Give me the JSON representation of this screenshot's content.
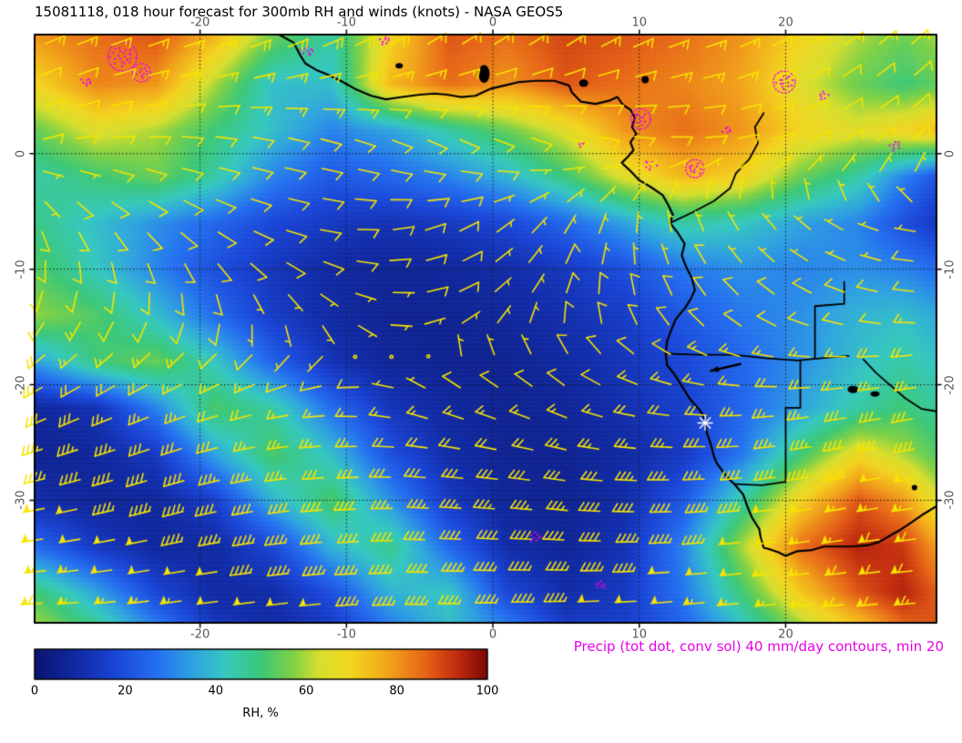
{
  "title": "15081118, 018 hour forecast for 300mb RH and winds (knots) - NASA GEOS5",
  "precip_note": "Precip (tot dot, conv sol) 40 mm/day contours, min 20",
  "colorbar": {
    "label": "RH, %",
    "ticks": [
      0,
      20,
      40,
      60,
      80,
      100
    ]
  },
  "axes": {
    "lon_ticks": [
      -20,
      -10,
      0,
      10,
      20
    ],
    "lat_ticks": [
      0,
      -10,
      -20,
      -30
    ],
    "lon_range": [
      -31.3,
      30.3
    ],
    "lat_range": [
      -40.6,
      10.3
    ]
  },
  "colors": {
    "barb": "#f7e400",
    "precip": "#ee00ee",
    "coast": "#000000",
    "grid": "#1a1a1a",
    "marker": "#ffffff"
  },
  "chart_data": {
    "type": "heatmap",
    "title": "300mb relative humidity (%) with wind barbs (knots), 18h forecast, NASA GEOS5",
    "units": "%",
    "lon_grid": [
      -31,
      -27,
      -23,
      -19,
      -15,
      -11,
      -7,
      -3,
      1,
      5,
      9,
      13,
      17,
      21,
      25,
      28,
      31
    ],
    "lat_grid": [
      10,
      6,
      2,
      -2,
      -6,
      -10,
      -14,
      -18,
      -22,
      -26,
      -30,
      -34,
      -38,
      -41
    ],
    "rh_values": [
      [
        80,
        85,
        88,
        75,
        55,
        45,
        70,
        88,
        85,
        90,
        88,
        85,
        80,
        70,
        60,
        55,
        60
      ],
      [
        70,
        82,
        80,
        60,
        40,
        40,
        75,
        85,
        80,
        88,
        85,
        82,
        78,
        65,
        55,
        50,
        55
      ],
      [
        55,
        65,
        60,
        50,
        40,
        30,
        35,
        45,
        55,
        65,
        80,
        85,
        80,
        70,
        65,
        70,
        75
      ],
      [
        45,
        50,
        55,
        45,
        30,
        22,
        25,
        30,
        38,
        50,
        65,
        75,
        70,
        55,
        45,
        30,
        18
      ],
      [
        48,
        40,
        32,
        25,
        18,
        14,
        12,
        14,
        18,
        25,
        35,
        45,
        42,
        35,
        30,
        20,
        12
      ],
      [
        52,
        42,
        30,
        20,
        13,
        9,
        7,
        8,
        10,
        14,
        20,
        28,
        32,
        30,
        32,
        30,
        25
      ],
      [
        58,
        52,
        40,
        26,
        15,
        9,
        6,
        6,
        8,
        11,
        15,
        22,
        28,
        32,
        38,
        40,
        35
      ],
      [
        35,
        50,
        55,
        42,
        24,
        12,
        7,
        6,
        6,
        9,
        13,
        18,
        25,
        32,
        40,
        45,
        40
      ],
      [
        8,
        12,
        30,
        52,
        45,
        26,
        13,
        8,
        6,
        7,
        11,
        16,
        25,
        35,
        45,
        50,
        45
      ],
      [
        6,
        8,
        14,
        35,
        52,
        40,
        20,
        10,
        6,
        6,
        9,
        14,
        28,
        50,
        68,
        60,
        50
      ],
      [
        10,
        7,
        8,
        16,
        38,
        52,
        32,
        14,
        7,
        6,
        10,
        22,
        45,
        70,
        88,
        80,
        60
      ],
      [
        25,
        14,
        8,
        9,
        18,
        38,
        48,
        25,
        10,
        7,
        12,
        30,
        60,
        85,
        95,
        92,
        75
      ],
      [
        50,
        35,
        18,
        9,
        10,
        20,
        38,
        42,
        18,
        10,
        14,
        28,
        50,
        72,
        88,
        95,
        85
      ],
      [
        60,
        48,
        30,
        14,
        9,
        14,
        28,
        40,
        30,
        15,
        16,
        24,
        40,
        58,
        72,
        85,
        90
      ]
    ],
    "colormap": [
      [
        0,
        "#0b1470"
      ],
      [
        0.1,
        "#112ca8"
      ],
      [
        0.18,
        "#1a46d8"
      ],
      [
        0.27,
        "#2470f0"
      ],
      [
        0.35,
        "#2fa3e0"
      ],
      [
        0.42,
        "#35c8c0"
      ],
      [
        0.5,
        "#3cc878"
      ],
      [
        0.57,
        "#7ed146"
      ],
      [
        0.63,
        "#d8df2e"
      ],
      [
        0.7,
        "#f3d51e"
      ],
      [
        0.78,
        "#f2a51a"
      ],
      [
        0.86,
        "#e76617"
      ],
      [
        0.93,
        "#c42e0e"
      ],
      [
        1,
        "#7e0707"
      ]
    ],
    "wind": {
      "lon_grid": [
        -31,
        -22,
        -13,
        -4,
        5,
        14,
        23,
        31
      ],
      "lat_grid": [
        10,
        2,
        -6,
        -14,
        -22,
        -30,
        -41
      ],
      "u": [
        [
          -12,
          -15,
          -18,
          -15,
          -12,
          -15,
          -12,
          -10
        ],
        [
          -8,
          -10,
          -12,
          -10,
          -8,
          -10,
          -8,
          -6
        ],
        [
          -4,
          -8,
          -10,
          -8,
          -4,
          2,
          4,
          5
        ],
        [
          6,
          2,
          -4,
          -8,
          -2,
          6,
          10,
          12
        ],
        [
          25,
          20,
          14,
          10,
          12,
          18,
          25,
          30
        ],
        [
          48,
          42,
          38,
          35,
          36,
          42,
          52,
          58
        ],
        [
          60,
          55,
          50,
          48,
          50,
          55,
          62,
          65
        ]
      ],
      "v": [
        [
          -5,
          -5,
          -8,
          -10,
          -8,
          -5,
          -8,
          -10
        ],
        [
          -3,
          0,
          3,
          5,
          3,
          0,
          -4,
          -6
        ],
        [
          8,
          6,
          2,
          -3,
          -6,
          -6,
          -3,
          0
        ],
        [
          12,
          10,
          6,
          -2,
          -8,
          -8,
          -4,
          0
        ],
        [
          12,
          8,
          2,
          -4,
          -6,
          -2,
          4,
          6
        ],
        [
          10,
          12,
          4,
          -2,
          -4,
          2,
          10,
          8
        ],
        [
          2,
          6,
          6,
          0,
          2,
          6,
          6,
          4
        ]
      ]
    },
    "coastlines": [
      [
        [
          -14.6,
          10.3
        ],
        [
          -13.6,
          9.6
        ],
        [
          -13.2,
          8.6
        ],
        [
          -12.8,
          7.8
        ],
        [
          -12.0,
          7.2
        ],
        [
          -11.2,
          6.8
        ],
        [
          -10.4,
          6.3
        ],
        [
          -9.4,
          5.6
        ],
        [
          -8.3,
          5.0
        ],
        [
          -7.3,
          4.7
        ],
        [
          -6.2,
          4.9
        ],
        [
          -5.0,
          5.1
        ],
        [
          -4.0,
          5.2
        ],
        [
          -3.1,
          5.1
        ],
        [
          -2.2,
          4.9
        ],
        [
          -1.2,
          5.0
        ],
        [
          -0.2,
          5.6
        ],
        [
          0.8,
          5.9
        ],
        [
          1.8,
          6.2
        ],
        [
          2.9,
          6.3
        ],
        [
          4.2,
          6.3
        ],
        [
          5.2,
          5.9
        ],
        [
          5.4,
          5.3
        ],
        [
          6.0,
          4.5
        ],
        [
          7.0,
          4.3
        ],
        [
          8.0,
          4.6
        ],
        [
          8.5,
          4.9
        ],
        [
          8.9,
          4.2
        ],
        [
          9.4,
          3.8
        ],
        [
          9.7,
          3.1
        ],
        [
          9.5,
          2.3
        ],
        [
          9.8,
          1.7
        ],
        [
          9.4,
          1.0
        ],
        [
          9.6,
          0.3
        ],
        [
          9.2,
          -0.3
        ],
        [
          8.8,
          -0.8
        ],
        [
          9.4,
          -1.5
        ],
        [
          10.0,
          -2.3
        ],
        [
          10.8,
          -2.9
        ],
        [
          11.6,
          -3.6
        ],
        [
          12.0,
          -4.5
        ],
        [
          12.3,
          -5.3
        ],
        [
          12.1,
          -6.0
        ],
        [
          12.6,
          -6.8
        ],
        [
          13.1,
          -7.8
        ],
        [
          12.9,
          -8.8
        ],
        [
          13.2,
          -9.8
        ],
        [
          13.6,
          -10.8
        ],
        [
          13.8,
          -11.8
        ],
        [
          13.5,
          -12.6
        ],
        [
          13.1,
          -13.4
        ],
        [
          12.5,
          -14.3
        ],
        [
          12.2,
          -15.2
        ],
        [
          11.9,
          -16.2
        ],
        [
          11.8,
          -17.3
        ],
        [
          11.9,
          -18.3
        ],
        [
          12.4,
          -19.1
        ],
        [
          13.0,
          -20.3
        ],
        [
          13.5,
          -21.3
        ],
        [
          14.2,
          -22.3
        ],
        [
          14.5,
          -23.1
        ],
        [
          14.6,
          -24.1
        ],
        [
          14.9,
          -25.2
        ],
        [
          15.1,
          -26.2
        ],
        [
          15.3,
          -26.8
        ],
        [
          16.0,
          -28.0
        ],
        [
          16.5,
          -28.6
        ],
        [
          17.1,
          -29.5
        ],
        [
          17.4,
          -30.6
        ],
        [
          17.7,
          -31.5
        ],
        [
          18.2,
          -32.5
        ],
        [
          18.3,
          -33.3
        ],
        [
          18.5,
          -34.1
        ],
        [
          18.8,
          -34.2
        ],
        [
          19.5,
          -34.5
        ],
        [
          20.0,
          -34.8
        ],
        [
          20.8,
          -34.4
        ],
        [
          21.8,
          -34.3
        ],
        [
          22.6,
          -34.0
        ],
        [
          23.5,
          -34.0
        ],
        [
          24.5,
          -34.0
        ],
        [
          25.6,
          -33.9
        ],
        [
          26.4,
          -33.6
        ],
        [
          27.2,
          -33.0
        ],
        [
          27.9,
          -32.5
        ],
        [
          28.6,
          -31.9
        ],
        [
          29.4,
          -31.2
        ],
        [
          30.3,
          -30.5
        ]
      ],
      [
        [
          12.1,
          -6.0
        ],
        [
          13.6,
          -5.1
        ],
        [
          15.1,
          -4.1
        ],
        [
          16.2,
          -3.0
        ],
        [
          16.6,
          -1.7
        ],
        [
          17.5,
          -0.5
        ],
        [
          18.1,
          0.9
        ],
        [
          17.9,
          2.3
        ],
        [
          18.5,
          3.5
        ]
      ],
      [
        [
          11.8,
          -17.3
        ],
        [
          14.0,
          -17.4
        ],
        [
          16.5,
          -17.4
        ],
        [
          18.6,
          -17.7
        ],
        [
          20.8,
          -17.9
        ],
        [
          23.3,
          -17.6
        ],
        [
          24.3,
          -17.5
        ]
      ],
      [
        [
          22.0,
          -17.7
        ],
        [
          22.0,
          -13.2
        ],
        [
          24.0,
          -13.0
        ],
        [
          24.0,
          -11.1
        ]
      ],
      [
        [
          21.0,
          -17.9
        ],
        [
          21.0,
          -22.0
        ],
        [
          20.0,
          -22.0
        ],
        [
          20.0,
          -28.4
        ],
        [
          18.4,
          -28.7
        ],
        [
          16.5,
          -28.6
        ]
      ],
      [
        [
          25.3,
          -17.8
        ],
        [
          26.2,
          -19.0
        ],
        [
          27.2,
          -20.1
        ],
        [
          28.2,
          -21.2
        ],
        [
          29.3,
          -22.1
        ],
        [
          30.3,
          -22.3
        ]
      ]
    ],
    "lakes": [
      [
        -0.6,
        6.9,
        6,
        10
      ],
      [
        6.2,
        6.1,
        5,
        4
      ],
      [
        -6.4,
        7.6,
        4,
        3
      ],
      [
        10.4,
        6.4,
        4,
        4
      ],
      [
        24.6,
        -20.4,
        6,
        4
      ],
      [
        26.1,
        -20.8,
        5,
        3
      ],
      [
        28.8,
        -28.9,
        3,
        3
      ]
    ],
    "precip_clusters": [
      [
        -25.3,
        8.4,
        14,
        22
      ],
      [
        -24.0,
        7.0,
        8,
        10
      ],
      [
        -27.8,
        6.2,
        6,
        8
      ],
      [
        -12.6,
        8.9,
        7,
        9
      ],
      [
        -7.3,
        9.8,
        6,
        8
      ],
      [
        10.1,
        3.0,
        9,
        12
      ],
      [
        10.7,
        -1.0,
        7,
        9
      ],
      [
        13.8,
        -1.3,
        8,
        10
      ],
      [
        19.9,
        6.2,
        10,
        14
      ],
      [
        22.5,
        5.0,
        6,
        7
      ],
      [
        27.4,
        0.7,
        7,
        8
      ],
      [
        6.0,
        0.8,
        4,
        5
      ],
      [
        16.0,
        2.0,
        5,
        6
      ],
      [
        3.0,
        -33.2,
        7,
        8
      ],
      [
        7.5,
        -37.3,
        6,
        7
      ]
    ],
    "marker": {
      "lon": 14.5,
      "lat": -23.3,
      "symbol": "asterisk"
    },
    "annotation_arrow": {
      "from": [
        16.9,
        -18.2
      ],
      "to": [
        14.9,
        -18.8
      ]
    }
  }
}
